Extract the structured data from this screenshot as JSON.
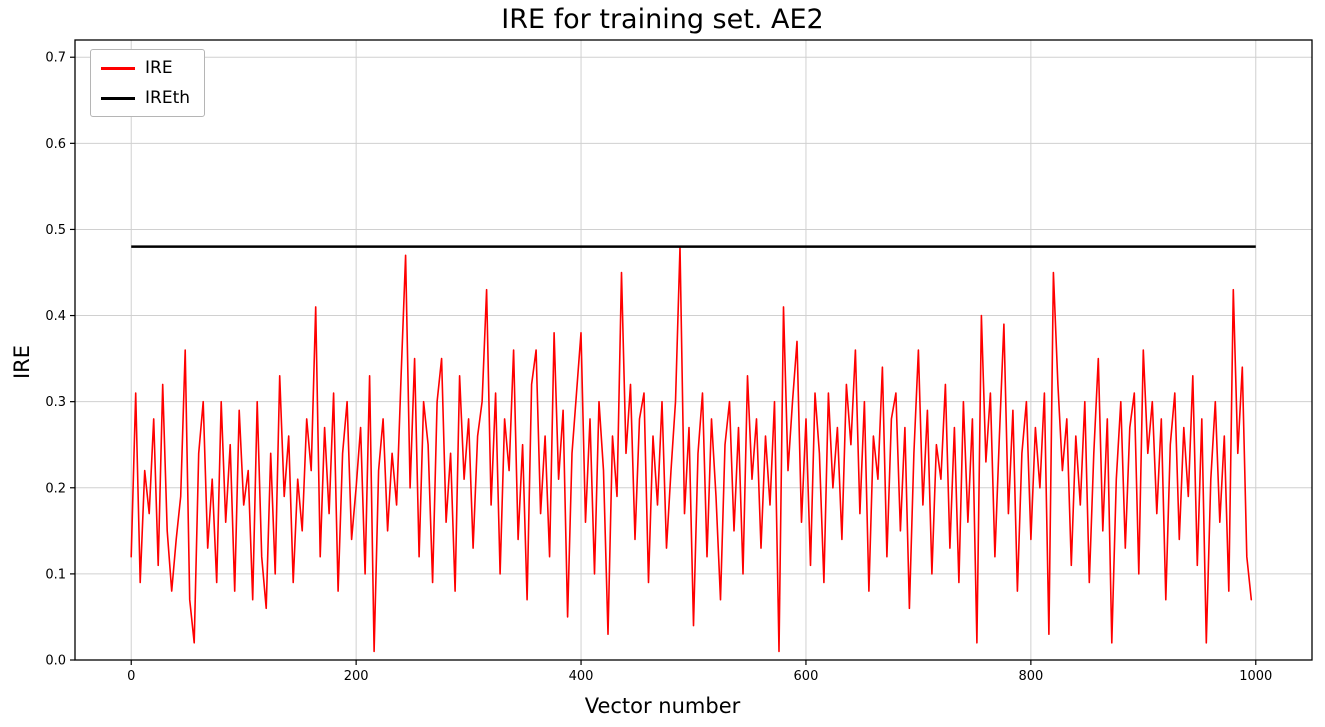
{
  "title": "IRE for training set. AE2",
  "legend": [
    {
      "label": "IRE",
      "color": "#ff0000"
    },
    {
      "label": "IREth",
      "color": "#000000"
    }
  ],
  "colors": {
    "series": "#ff0000",
    "threshold": "#000000",
    "grid": "#d0d0d0",
    "spine": "#000000",
    "background": "#ffffff"
  },
  "chart_data": {
    "type": "line",
    "title": "IRE for training set. AE2",
    "xlabel": "Vector number",
    "ylabel": "IRE",
    "xlim": [
      -50,
      1050
    ],
    "ylim": [
      0.0,
      0.72
    ],
    "xticks": [
      0,
      200,
      400,
      600,
      800,
      1000
    ],
    "xticklabels": [
      "0",
      "200",
      "400",
      "600",
      "800",
      "1000"
    ],
    "yticks": [
      0.0,
      0.1,
      0.2,
      0.3,
      0.4,
      0.5,
      0.6,
      0.7
    ],
    "yticklabels": [
      "0.0",
      "0.1",
      "0.2",
      "0.3",
      "0.4",
      "0.5",
      "0.6",
      "0.7"
    ],
    "grid": true,
    "legend_position": "upper left",
    "threshold": {
      "name": "IREth",
      "value": 0.48,
      "x_range": [
        0,
        1000
      ],
      "color": "#000000",
      "linewidth": 2.5
    },
    "series": [
      {
        "name": "IRE",
        "color": "#ff0000",
        "linewidth": 1.6,
        "x_start": 0,
        "x_step": 4,
        "values": [
          0.12,
          0.31,
          0.09,
          0.22,
          0.17,
          0.28,
          0.11,
          0.32,
          0.15,
          0.08,
          0.14,
          0.19,
          0.36,
          0.07,
          0.02,
          0.24,
          0.3,
          0.13,
          0.21,
          0.09,
          0.3,
          0.16,
          0.25,
          0.08,
          0.29,
          0.18,
          0.22,
          0.07,
          0.3,
          0.12,
          0.06,
          0.24,
          0.1,
          0.33,
          0.19,
          0.26,
          0.09,
          0.21,
          0.15,
          0.28,
          0.22,
          0.41,
          0.12,
          0.27,
          0.17,
          0.31,
          0.08,
          0.24,
          0.3,
          0.14,
          0.2,
          0.27,
          0.1,
          0.33,
          0.01,
          0.22,
          0.28,
          0.15,
          0.24,
          0.18,
          0.33,
          0.47,
          0.2,
          0.35,
          0.12,
          0.3,
          0.25,
          0.09,
          0.3,
          0.35,
          0.16,
          0.24,
          0.08,
          0.33,
          0.21,
          0.28,
          0.13,
          0.26,
          0.3,
          0.43,
          0.18,
          0.31,
          0.1,
          0.28,
          0.22,
          0.36,
          0.14,
          0.25,
          0.07,
          0.32,
          0.36,
          0.17,
          0.26,
          0.12,
          0.38,
          0.21,
          0.29,
          0.05,
          0.24,
          0.31,
          0.38,
          0.16,
          0.28,
          0.1,
          0.3,
          0.22,
          0.03,
          0.26,
          0.19,
          0.45,
          0.24,
          0.32,
          0.14,
          0.28,
          0.31,
          0.09,
          0.26,
          0.18,
          0.3,
          0.13,
          0.22,
          0.3,
          0.48,
          0.17,
          0.27,
          0.04,
          0.24,
          0.31,
          0.12,
          0.28,
          0.19,
          0.07,
          0.25,
          0.3,
          0.15,
          0.27,
          0.1,
          0.33,
          0.21,
          0.28,
          0.13,
          0.26,
          0.18,
          0.3,
          0.01,
          0.41,
          0.22,
          0.3,
          0.37,
          0.16,
          0.28,
          0.11,
          0.31,
          0.24,
          0.09,
          0.31,
          0.2,
          0.27,
          0.14,
          0.32,
          0.25,
          0.36,
          0.17,
          0.3,
          0.08,
          0.26,
          0.21,
          0.34,
          0.12,
          0.28,
          0.31,
          0.15,
          0.27,
          0.06,
          0.24,
          0.36,
          0.18,
          0.29,
          0.1,
          0.25,
          0.21,
          0.32,
          0.13,
          0.27,
          0.09,
          0.3,
          0.16,
          0.28,
          0.02,
          0.4,
          0.23,
          0.31,
          0.12,
          0.26,
          0.39,
          0.17,
          0.29,
          0.08,
          0.24,
          0.3,
          0.14,
          0.27,
          0.2,
          0.31,
          0.03,
          0.45,
          0.32,
          0.22,
          0.28,
          0.11,
          0.26,
          0.18,
          0.3,
          0.09,
          0.24,
          0.35,
          0.15,
          0.28,
          0.02,
          0.21,
          0.3,
          0.13,
          0.27,
          0.31,
          0.1,
          0.36,
          0.24,
          0.3,
          0.17,
          0.28,
          0.07,
          0.25,
          0.31,
          0.14,
          0.27,
          0.19,
          0.33,
          0.11,
          0.28,
          0.02,
          0.21,
          0.3,
          0.16,
          0.26,
          0.08,
          0.43,
          0.24,
          0.34,
          0.12,
          0.07
        ]
      }
    ]
  }
}
